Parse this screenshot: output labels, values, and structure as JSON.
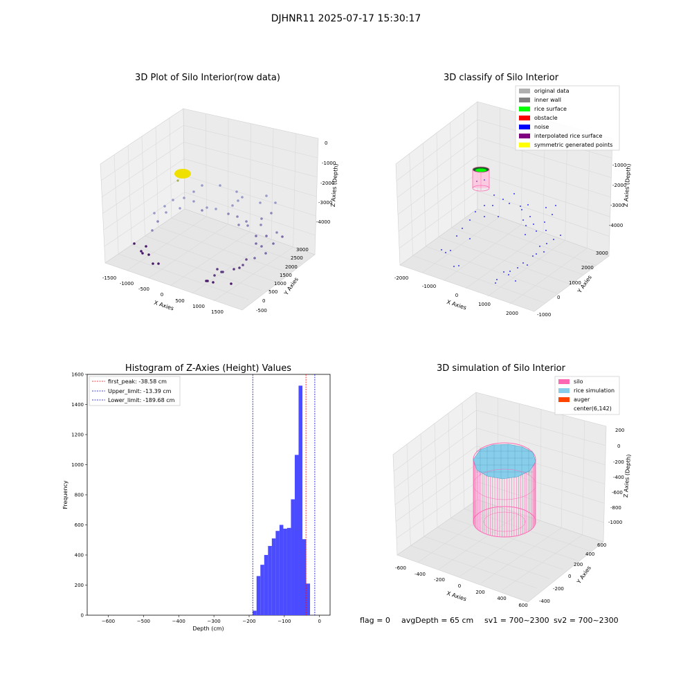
{
  "suptitle": "DJHNR11 2025-07-17 15:30:17",
  "footer": {
    "flag": "flag = 0",
    "avg_depth": "avgDepth = 65 cm",
    "sv1": "sv1 = 700~2300",
    "sv2": "sv2 = 700~2300"
  },
  "colors": {
    "original": "#b0b0b0",
    "inner_wall": "#808080",
    "rice_surface": "#00ff00",
    "obstacle": "#ff0000",
    "noise": "#0000ff",
    "interpolated": "#800080",
    "symmetric": "#ffff00",
    "silo": "#ff69b4",
    "rice_sim": "#87ceeb",
    "auger": "#ff4500",
    "hist_bar": "#4b4bff"
  },
  "chart_data": [
    {
      "type": "scatter",
      "title": "3D Plot of Silo Interior(row data)",
      "xlabel": "X Axies",
      "ylabel": "Y Axies",
      "zlabel": "Z Axies (Depth)",
      "x_ticks": [
        "-1500",
        "-1000",
        "-500",
        "0",
        "500",
        "1000",
        "1500"
      ],
      "y_ticks": [
        "-500",
        "0",
        "500",
        "1000",
        "1500",
        "2000",
        "2500",
        "3000"
      ],
      "z_ticks": [
        "0",
        "-1000",
        "-2000",
        "-3000",
        "-4000"
      ]
    },
    {
      "type": "scatter",
      "title": "3D classify of Silo Interior",
      "xlabel": "X Axies",
      "ylabel": "Y Axies",
      "zlabel": "Z Axies (Depth)",
      "x_ticks": [
        "-2000",
        "-1000",
        "0",
        "1000",
        "2000"
      ],
      "y_ticks": [
        "-1000",
        "0",
        "1000",
        "2000",
        "3000"
      ],
      "z_ticks": [
        "-1000",
        "-2000",
        "-3000",
        "-4000"
      ],
      "legend": [
        "original data",
        "inner wall",
        "rice surface",
        "obstacle",
        "noise",
        "interpolated rice surface",
        "symmetric generated points"
      ]
    },
    {
      "type": "bar",
      "title": "Histogram of Z-Axies (Height) Values",
      "xlabel": "Depth (cm)",
      "ylabel": "Frequency",
      "xlim": [
        -660,
        30
      ],
      "ylim": [
        0,
        1600
      ],
      "x_ticks": [
        -600,
        -500,
        -400,
        -300,
        -200,
        -100,
        0
      ],
      "y_ticks": [
        0,
        200,
        400,
        600,
        800,
        1000,
        1200,
        1400,
        1600
      ],
      "bin_width": 10.85,
      "bin_edges_start": -189.68,
      "values": [
        30,
        260,
        335,
        400,
        460,
        510,
        560,
        600,
        575,
        580,
        770,
        1065,
        1525,
        505,
        210
      ],
      "lines": [
        {
          "label": "first_peak: -38.58 cm",
          "x": -38.58,
          "color": "#ff0000"
        },
        {
          "label": "Upper_limit: -13.39 cm",
          "x": -13.39,
          "color": "#0000cc"
        },
        {
          "label": "Lower_limit: -189.68 cm",
          "x": -189.68,
          "color": "#0000cc"
        }
      ]
    },
    {
      "type": "surface",
      "title": "3D simulation of Silo Interior",
      "xlabel": "X Axies",
      "ylabel": "Y Axies",
      "zlabel": "Z Axies (Depth)",
      "x_ticks": [
        "-600",
        "-400",
        "-200",
        "0",
        "200",
        "400",
        "600"
      ],
      "y_ticks": [
        "-400",
        "-200",
        "0",
        "200",
        "400",
        "600"
      ],
      "z_ticks": [
        "200",
        "0",
        "-200",
        "-400",
        "-600",
        "-800",
        "-1000"
      ],
      "legend": [
        "silo",
        "rice simulation",
        "auger",
        "center(6,142)"
      ]
    }
  ]
}
